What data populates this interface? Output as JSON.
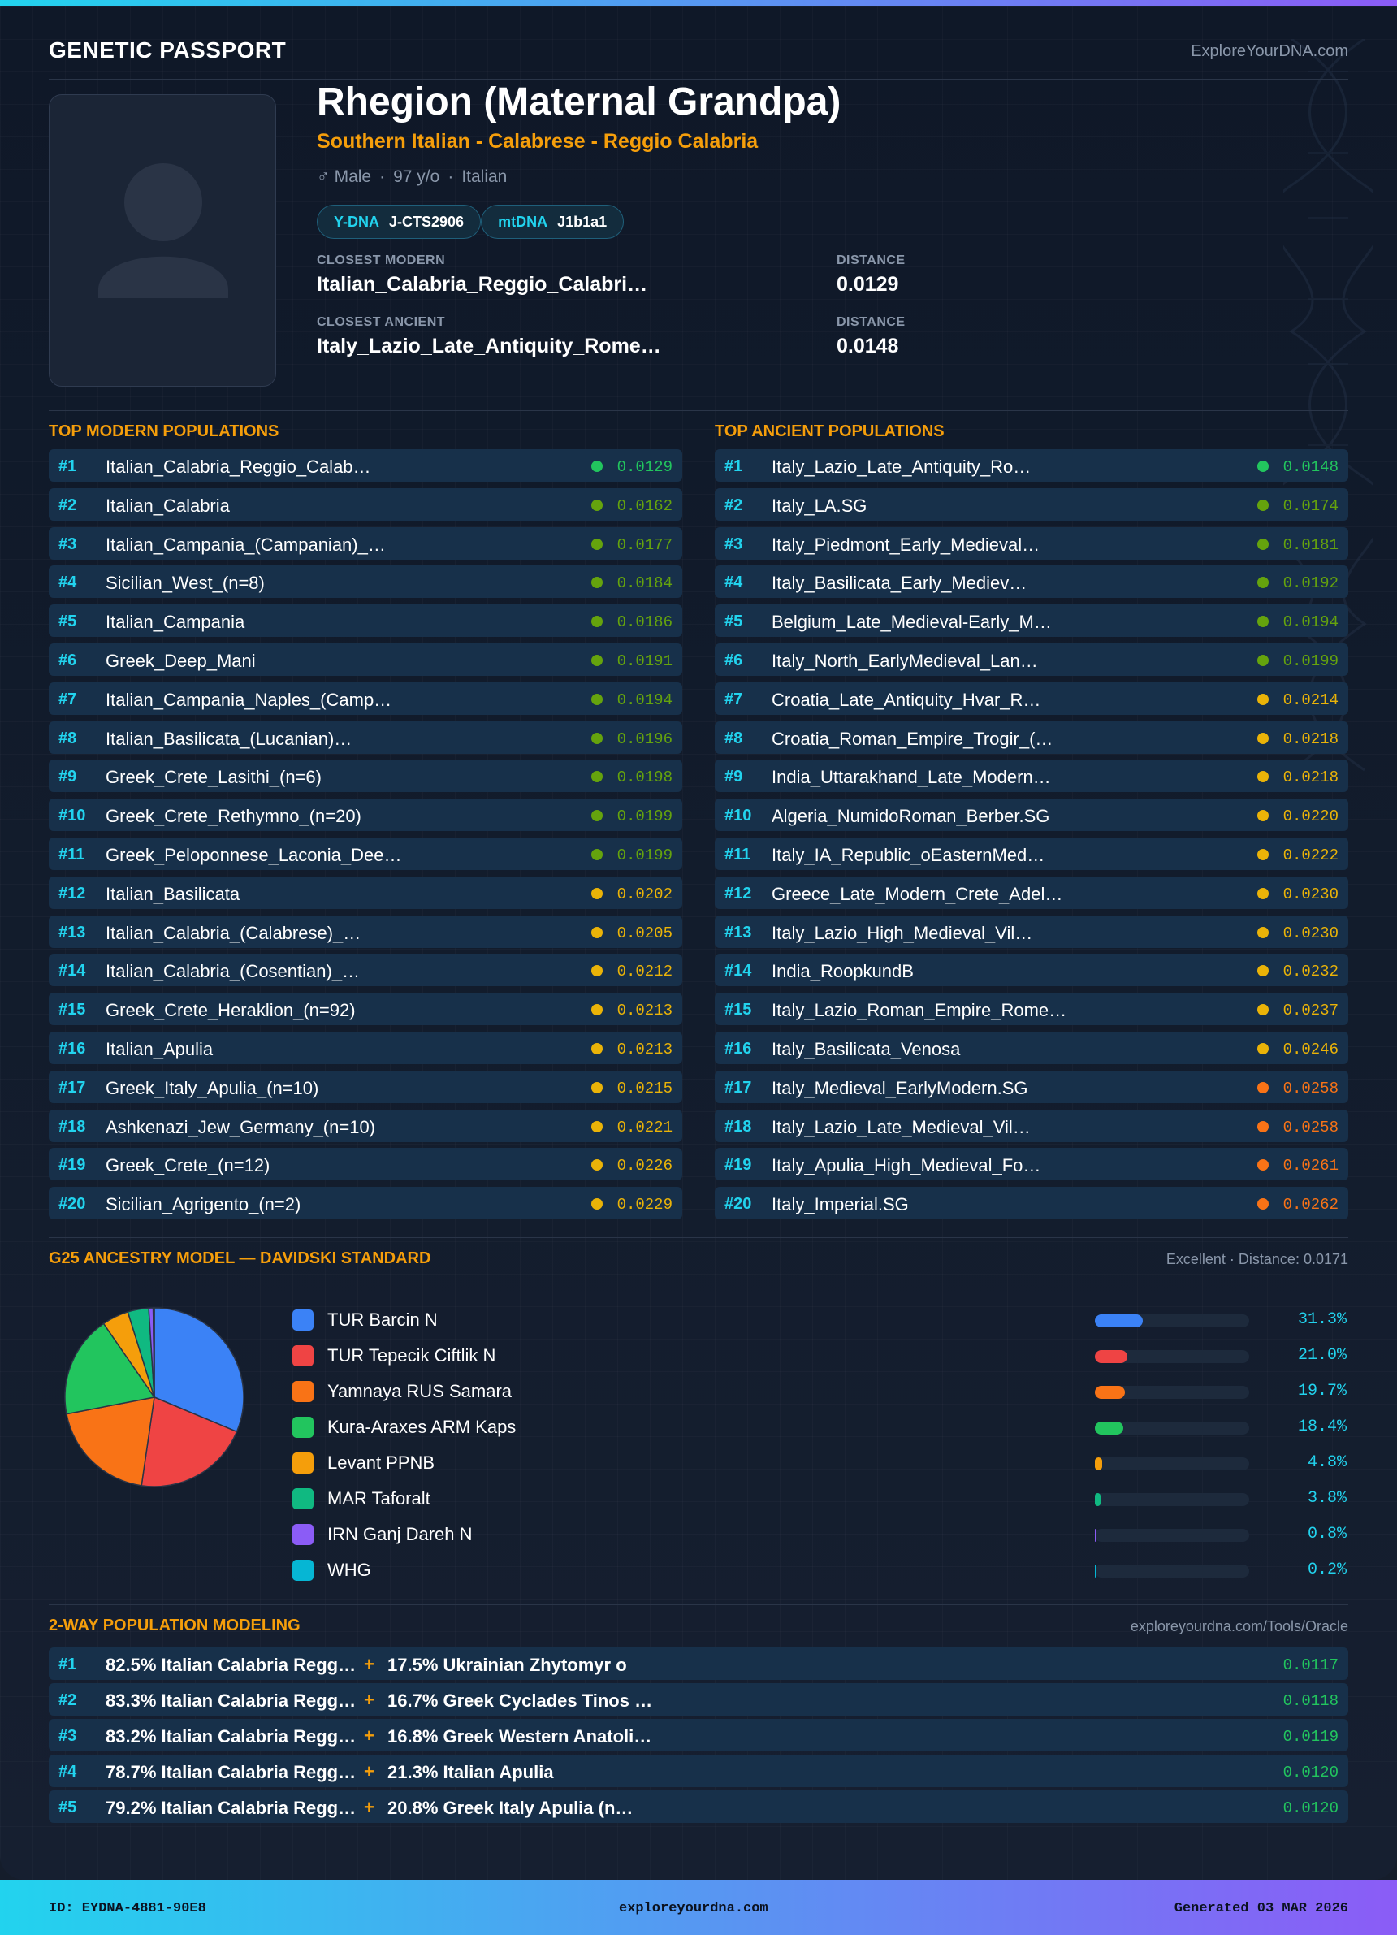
{
  "header": {
    "brand": "GENETIC PASSPORT",
    "site": "ExploreYourDNA.com"
  },
  "profile": {
    "name": "Rhegion (Maternal Grandpa)",
    "subtitle": "Southern Italian - Calabrese - Reggio Calabria",
    "gender": "♂ Male",
    "age": "97 y/o",
    "nationality": "Italian",
    "ydna_label": "Y-DNA",
    "ydna": "J-CTS2906",
    "mtdna_label": "mtDNA",
    "mtdna": "J1b1a1",
    "closest_modern_label": "CLOSEST MODERN",
    "closest_modern": "Italian_Calabria_Reggio_Calabri…",
    "closest_modern_dist_label": "DISTANCE",
    "closest_modern_dist": "0.0129",
    "closest_ancient_label": "CLOSEST ANCIENT",
    "closest_ancient": "Italy_Lazio_Late_Antiquity_Rome…",
    "closest_ancient_dist_label": "DISTANCE",
    "closest_ancient_dist": "0.0148"
  },
  "modern": {
    "title": "TOP MODERN POPULATIONS",
    "rows": [
      {
        "rank": "#1",
        "name": "Italian_Calabria_Reggio_Calab…",
        "dist": "0.0129",
        "color": "#22c55e"
      },
      {
        "rank": "#2",
        "name": "Italian_Calabria",
        "dist": "0.0162",
        "color": "#65a30d"
      },
      {
        "rank": "#3",
        "name": "Italian_Campania_(Campanian)_…",
        "dist": "0.0177",
        "color": "#65a30d"
      },
      {
        "rank": "#4",
        "name": "Sicilian_West_(n=8)",
        "dist": "0.0184",
        "color": "#65a30d"
      },
      {
        "rank": "#5",
        "name": "Italian_Campania",
        "dist": "0.0186",
        "color": "#65a30d"
      },
      {
        "rank": "#6",
        "name": "Greek_Deep_Mani",
        "dist": "0.0191",
        "color": "#65a30d"
      },
      {
        "rank": "#7",
        "name": "Italian_Campania_Naples_(Camp…",
        "dist": "0.0194",
        "color": "#65a30d"
      },
      {
        "rank": "#8",
        "name": "Italian_Basilicata_(Lucanian)…",
        "dist": "0.0196",
        "color": "#65a30d"
      },
      {
        "rank": "#9",
        "name": "Greek_Crete_Lasithi_(n=6)",
        "dist": "0.0198",
        "color": "#65a30d"
      },
      {
        "rank": "#10",
        "name": "Greek_Crete_Rethymno_(n=20)",
        "dist": "0.0199",
        "color": "#65a30d"
      },
      {
        "rank": "#11",
        "name": "Greek_Peloponnese_Laconia_Dee…",
        "dist": "0.0199",
        "color": "#65a30d"
      },
      {
        "rank": "#12",
        "name": "Italian_Basilicata",
        "dist": "0.0202",
        "color": "#eab308"
      },
      {
        "rank": "#13",
        "name": "Italian_Calabria_(Calabrese)_…",
        "dist": "0.0205",
        "color": "#eab308"
      },
      {
        "rank": "#14",
        "name": "Italian_Calabria_(Cosentian)_…",
        "dist": "0.0212",
        "color": "#eab308"
      },
      {
        "rank": "#15",
        "name": "Greek_Crete_Heraklion_(n=92)",
        "dist": "0.0213",
        "color": "#eab308"
      },
      {
        "rank": "#16",
        "name": "Italian_Apulia",
        "dist": "0.0213",
        "color": "#eab308"
      },
      {
        "rank": "#17",
        "name": "Greek_Italy_Apulia_(n=10)",
        "dist": "0.0215",
        "color": "#eab308"
      },
      {
        "rank": "#18",
        "name": "Ashkenazi_Jew_Germany_(n=10)",
        "dist": "0.0221",
        "color": "#eab308"
      },
      {
        "rank": "#19",
        "name": "Greek_Crete_(n=12)",
        "dist": "0.0226",
        "color": "#eab308"
      },
      {
        "rank": "#20",
        "name": "Sicilian_Agrigento_(n=2)",
        "dist": "0.0229",
        "color": "#eab308"
      }
    ]
  },
  "ancient": {
    "title": "TOP ANCIENT POPULATIONS",
    "rows": [
      {
        "rank": "#1",
        "name": "Italy_Lazio_Late_Antiquity_Ro…",
        "dist": "0.0148",
        "color": "#22c55e"
      },
      {
        "rank": "#2",
        "name": "Italy_LA.SG",
        "dist": "0.0174",
        "color": "#65a30d"
      },
      {
        "rank": "#3",
        "name": "Italy_Piedmont_Early_Medieval…",
        "dist": "0.0181",
        "color": "#65a30d"
      },
      {
        "rank": "#4",
        "name": "Italy_Basilicata_Early_Mediev…",
        "dist": "0.0192",
        "color": "#65a30d"
      },
      {
        "rank": "#5",
        "name": "Belgium_Late_Medieval-Early_M…",
        "dist": "0.0194",
        "color": "#65a30d"
      },
      {
        "rank": "#6",
        "name": "Italy_North_EarlyMedieval_Lan…",
        "dist": "0.0199",
        "color": "#65a30d"
      },
      {
        "rank": "#7",
        "name": "Croatia_Late_Antiquity_Hvar_R…",
        "dist": "0.0214",
        "color": "#eab308"
      },
      {
        "rank": "#8",
        "name": "Croatia_Roman_Empire_Trogir_(…",
        "dist": "0.0218",
        "color": "#eab308"
      },
      {
        "rank": "#9",
        "name": "India_Uttarakhand_Late_Modern…",
        "dist": "0.0218",
        "color": "#eab308"
      },
      {
        "rank": "#10",
        "name": "Algeria_NumidoRoman_Berber.SG",
        "dist": "0.0220",
        "color": "#eab308"
      },
      {
        "rank": "#11",
        "name": "Italy_IA_Republic_oEasternMed…",
        "dist": "0.0222",
        "color": "#eab308"
      },
      {
        "rank": "#12",
        "name": "Greece_Late_Modern_Crete_Adel…",
        "dist": "0.0230",
        "color": "#eab308"
      },
      {
        "rank": "#13",
        "name": "Italy_Lazio_High_Medieval_Vil…",
        "dist": "0.0230",
        "color": "#eab308"
      },
      {
        "rank": "#14",
        "name": "India_RoopkundB",
        "dist": "0.0232",
        "color": "#eab308"
      },
      {
        "rank": "#15",
        "name": "Italy_Lazio_Roman_Empire_Rome…",
        "dist": "0.0237",
        "color": "#eab308"
      },
      {
        "rank": "#16",
        "name": "Italy_Basilicata_Venosa",
        "dist": "0.0246",
        "color": "#eab308"
      },
      {
        "rank": "#17",
        "name": "Italy_Medieval_EarlyModern.SG",
        "dist": "0.0258",
        "color": "#f97316"
      },
      {
        "rank": "#18",
        "name": "Italy_Lazio_Late_Medieval_Vil…",
        "dist": "0.0258",
        "color": "#f97316"
      },
      {
        "rank": "#19",
        "name": "Italy_Apulia_High_Medieval_Fo…",
        "dist": "0.0261",
        "color": "#f97316"
      },
      {
        "rank": "#20",
        "name": "Italy_Imperial.SG",
        "dist": "0.0262",
        "color": "#f97316"
      }
    ]
  },
  "g25": {
    "title": "G25 ANCESTRY MODEL — DAVIDSKI STANDARD",
    "fit": "Excellent · Distance: 0.0171",
    "max_bar_pct": 100
  },
  "chart_data": {
    "type": "pie",
    "title": "",
    "categories": [
      "TUR Barcin N",
      "TUR Tepecik Ciftlik N",
      "Yamnaya RUS Samara",
      "Kura-Araxes ARM Kaps",
      "Levant PPNB",
      "MAR Taforalt",
      "IRN Ganj Dareh N",
      "WHG"
    ],
    "values": [
      31.3,
      21.0,
      19.7,
      18.4,
      4.8,
      3.8,
      0.8,
      0.2
    ],
    "labels": [
      "31.3%",
      "21.0%",
      "19.7%",
      "18.4%",
      "4.8%",
      "3.8%",
      "0.8%",
      "0.2%"
    ],
    "colors": [
      "#3b82f6",
      "#ef4444",
      "#f97316",
      "#22c55e",
      "#f59e0b",
      "#10b981",
      "#8b5cf6",
      "#06b6d4"
    ],
    "legend": "right"
  },
  "modeling": {
    "title": "2-WAY POPULATION MODELING",
    "source": "exploreyourdna.com/Tools/Oracle",
    "plus": "+",
    "rows": [
      {
        "rank": "#1",
        "a": "82.5% Italian Calabria Regg…",
        "b": "17.5% Ukrainian Zhytomyr o",
        "dist": "0.0117"
      },
      {
        "rank": "#2",
        "a": "83.3% Italian Calabria Regg…",
        "b": "16.7% Greek Cyclades Tinos …",
        "dist": "0.0118"
      },
      {
        "rank": "#3",
        "a": "83.2% Italian Calabria Regg…",
        "b": "16.8% Greek Western Anatoli…",
        "dist": "0.0119"
      },
      {
        "rank": "#4",
        "a": "78.7% Italian Calabria Regg…",
        "b": "21.3% Italian Apulia",
        "dist": "0.0120"
      },
      {
        "rank": "#5",
        "a": "79.2% Italian Calabria Regg…",
        "b": "20.8% Greek Italy Apulia (n…",
        "dist": "0.0120"
      }
    ]
  },
  "footer": {
    "id": "ID: EYDNA-4881-90E8",
    "site": "exploreyourdna.com",
    "generated": "Generated 03 MAR 2026"
  }
}
